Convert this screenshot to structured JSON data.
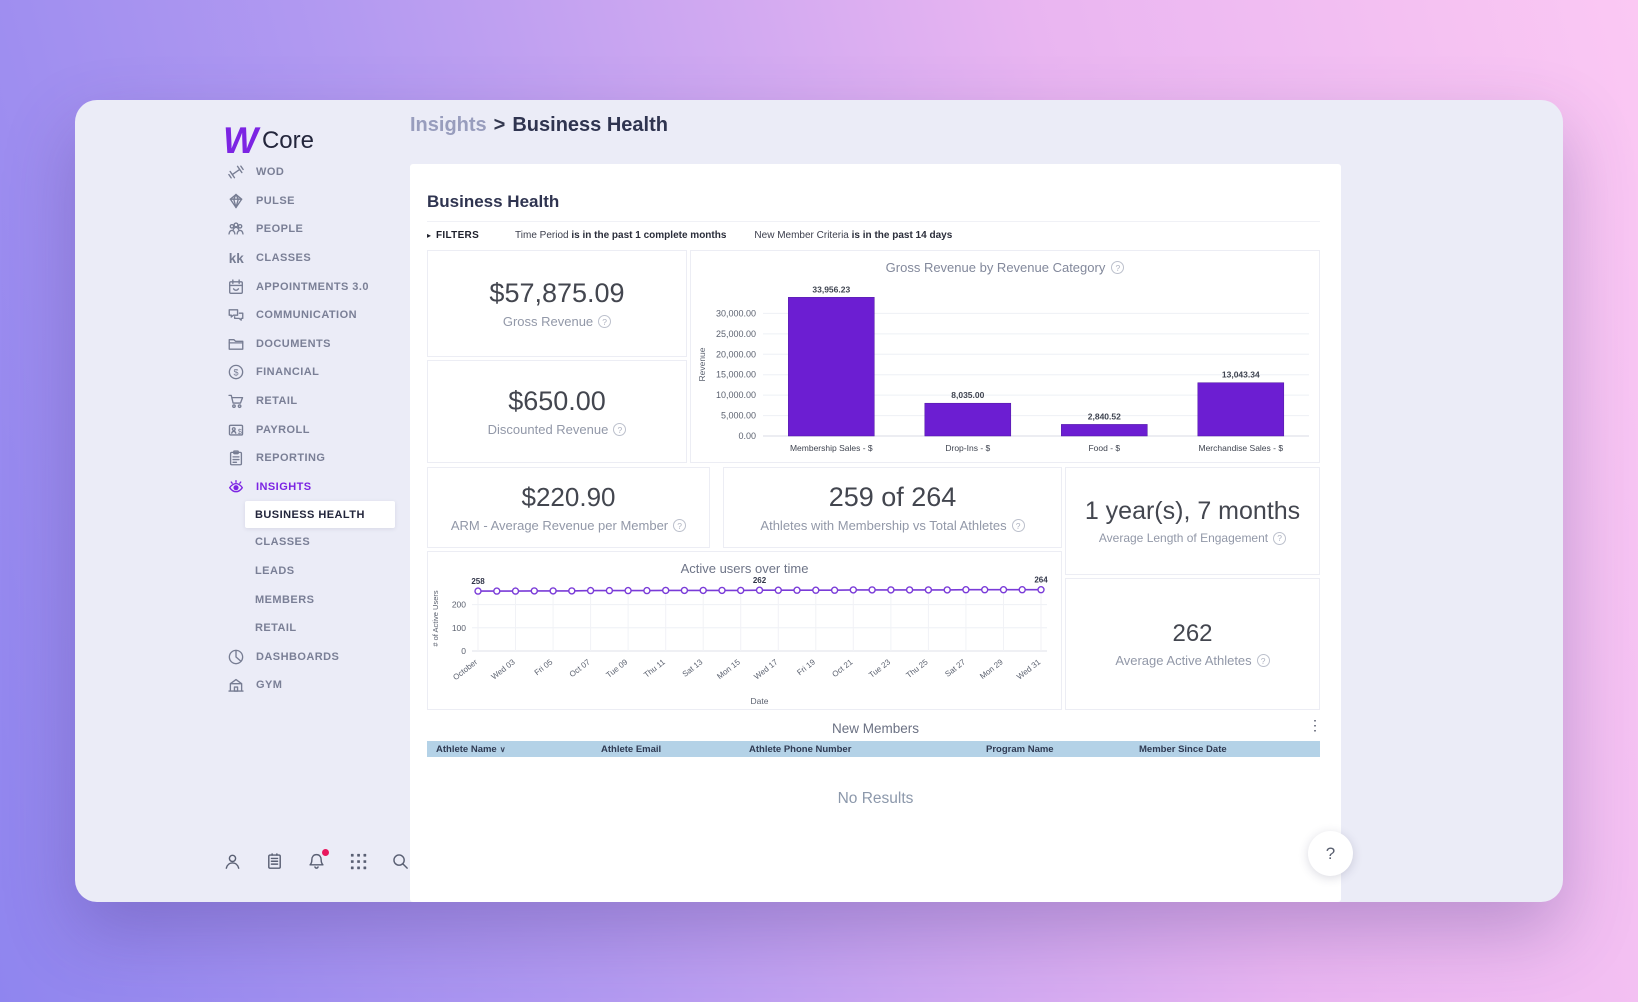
{
  "brand": {
    "logo_mark": "W",
    "logo_text": "Core"
  },
  "breadcrumb": {
    "section": "Insights",
    "separator": ">",
    "page": "Business Health"
  },
  "sidebar": {
    "items": [
      {
        "label": "WOD",
        "icon": "dumbbell-icon"
      },
      {
        "label": "PULSE",
        "icon": "gem-icon"
      },
      {
        "label": "PEOPLE",
        "icon": "people-icon"
      },
      {
        "label": "CLASSES",
        "icon": "instructors-icon"
      },
      {
        "label": "APPOINTMENTS 3.0",
        "icon": "calendar-icon"
      },
      {
        "label": "COMMUNICATION",
        "icon": "chat-icon"
      },
      {
        "label": "DOCUMENTS",
        "icon": "folder-icon"
      },
      {
        "label": "FINANCIAL",
        "icon": "dollar-circle-icon"
      },
      {
        "label": "RETAIL",
        "icon": "cart-icon"
      },
      {
        "label": "PAYROLL",
        "icon": "payroll-icon"
      },
      {
        "label": "REPORTING",
        "icon": "clipboard-icon"
      },
      {
        "label": "INSIGHTS",
        "icon": "eye-icon",
        "active": true
      },
      {
        "label": "BUSINESS HEALTH",
        "sub": true,
        "selected": true
      },
      {
        "label": "CLASSES",
        "sub": true
      },
      {
        "label": "LEADS",
        "sub": true
      },
      {
        "label": "MEMBERS",
        "sub": true
      },
      {
        "label": "RETAIL",
        "sub": true
      },
      {
        "label": "DASHBOARDS",
        "icon": "pie-chart-icon"
      },
      {
        "label": "GYM",
        "icon": "building-icon"
      }
    ],
    "footer_icons": [
      {
        "name": "profile-icon"
      },
      {
        "name": "notes-icon"
      },
      {
        "name": "notifications-icon",
        "badge": true
      },
      {
        "name": "apps-grid-icon"
      },
      {
        "name": "search-icon"
      }
    ]
  },
  "page": {
    "title": "Business Health"
  },
  "filters": {
    "toggle_icon": "▸",
    "toggle_label": "FILTERS",
    "criteria": [
      {
        "label": "Time Period",
        "value": "is in the past 1 complete months"
      },
      {
        "label": "New Member Criteria",
        "value": "is in the past 14 days"
      }
    ]
  },
  "kpis": {
    "gross": {
      "value": "$57,875.09",
      "label": "Gross Revenue"
    },
    "discounted": {
      "value": "$650.00",
      "label": "Discounted Revenue"
    },
    "arm": {
      "value": "$220.90",
      "label": "ARM - Average Revenue per Member"
    },
    "membership_ratio": {
      "value": "259 of 264",
      "label": "Athletes with Membership vs Total Athletes"
    },
    "engagement": {
      "value": "1 year(s), 7 months",
      "label": "Average Length of Engagement"
    },
    "avg_active": {
      "value": "262",
      "label": "Average Active Athletes"
    }
  },
  "chart_data": [
    {
      "type": "bar",
      "title": "Gross Revenue by Revenue Category",
      "categories": [
        "Membership Sales - $",
        "Drop-Ins - $",
        "Food - $",
        "Merchandise Sales - $"
      ],
      "values": [
        33956.23,
        8035.0,
        2840.52,
        13043.34
      ],
      "value_labels": [
        "33,956.23",
        "8,035.00",
        "2,840.52",
        "13,043.34"
      ],
      "xlabel": "",
      "ylabel": "Revenue",
      "ylim": [
        0,
        35000
      ],
      "yticks": [
        0,
        5000,
        10000,
        15000,
        20000,
        25000,
        30000
      ],
      "ytick_labels": [
        "0.00",
        "5,000.00",
        "10,000.00",
        "15,000.00",
        "20,000.00",
        "25,000.00",
        "30,000.00"
      ],
      "grid": true,
      "legend": "none",
      "bar_color": "#6c1ed2"
    },
    {
      "type": "line",
      "title": "Active users over time",
      "xlabel": "Date",
      "ylabel": "# of Active Users",
      "ylim": [
        0,
        280
      ],
      "yticks": [
        0,
        100,
        200
      ],
      "ytick_labels": [
        "0",
        "100",
        "200"
      ],
      "x_tick_labels": [
        "October",
        "Wed 03",
        "Fri 05",
        "Oct 07",
        "Tue 09",
        "Thu 11",
        "Sat 13",
        "Mon 15",
        "Wed 17",
        "Fri 19",
        "Oct 21",
        "Tue 23",
        "Thu 25",
        "Sat 27",
        "Mon 29",
        "Wed 31"
      ],
      "x_tick_every": 2,
      "values": [
        258,
        258,
        258,
        259,
        259,
        259,
        260,
        260,
        260,
        260,
        261,
        261,
        261,
        261,
        261,
        262,
        262,
        262,
        262,
        262,
        263,
        263,
        263,
        263,
        263,
        263,
        264,
        264,
        264,
        264,
        264
      ],
      "annotated_points": [
        {
          "index": 0,
          "label": "258"
        },
        {
          "index": 15,
          "label": "262"
        },
        {
          "index": 30,
          "label": "264"
        }
      ],
      "grid": true,
      "legend": "none",
      "line_color": "#7a3bd8",
      "marker": "circle-open"
    }
  ],
  "table": {
    "title": "New Members",
    "menu_icon": "⋮",
    "sort_indicator": "∨",
    "columns": [
      "Athlete Name",
      "Athlete Email",
      "Athlete Phone Number",
      "Program Name",
      "Member Since Date"
    ],
    "empty_message": "No Results",
    "header_color": "#b4d2e7"
  },
  "help_button": {
    "label": "?"
  }
}
